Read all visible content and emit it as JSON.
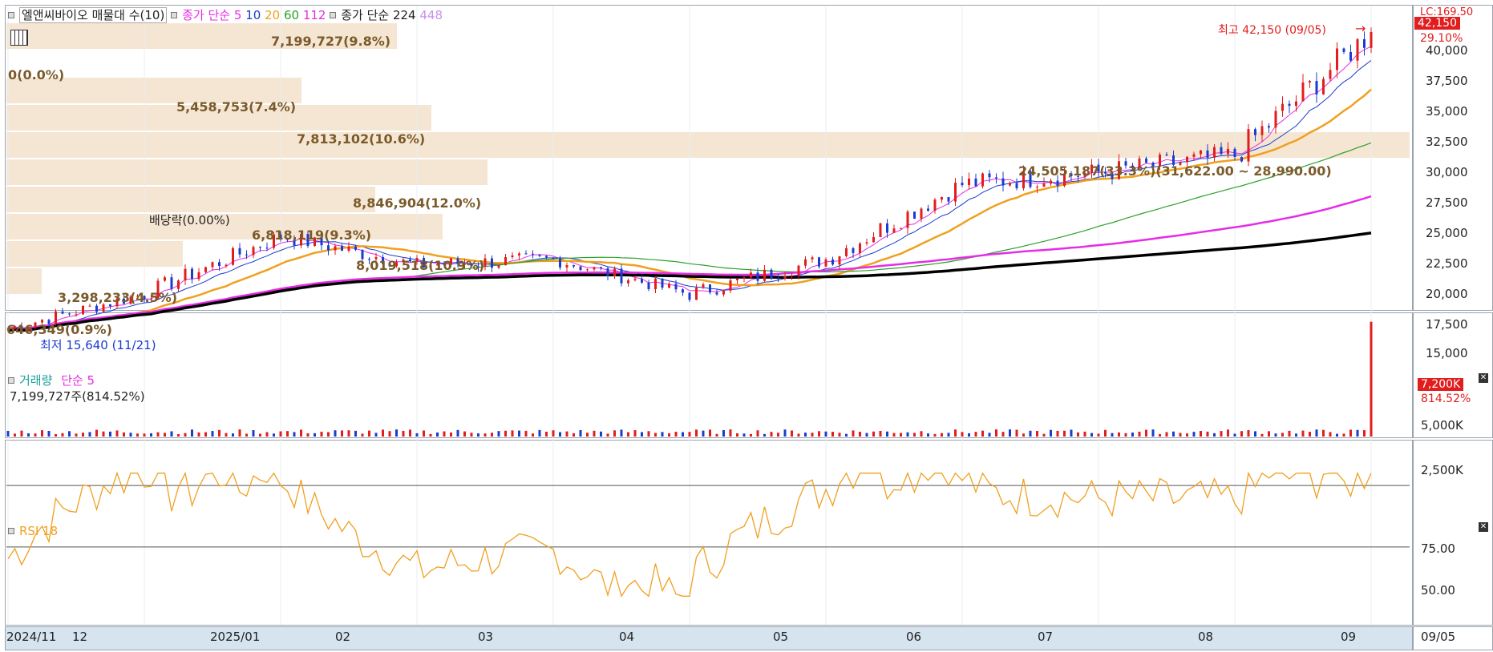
{
  "header": {
    "title": "엘앤씨바이오 매물대 수(10)",
    "ma_label": "종가 단순",
    "ma_periods": [
      "5",
      "10",
      "20",
      "60",
      "112"
    ],
    "ma2_label": "종가 단순 224",
    "ma2_extra": "448",
    "ma_colors": [
      "#e52de5",
      "#1a3ccf",
      "#f0a020",
      "#2aa02a",
      "#e52de5"
    ]
  },
  "price_panel": {
    "high_label": "최고 42,150 (09/05)",
    "low_label": "최저 15,640 (11/21)",
    "dividend_label": "배당락(0.00%)",
    "current_price": "42,150",
    "change_pct": "29.10%",
    "top_right_code": "LC:169.50",
    "y_ticks": [
      "40,000",
      "37,500",
      "35,000",
      "32,500",
      "30,000",
      "27,500",
      "25,000",
      "22,500",
      "20,000",
      "17,500",
      "15,000"
    ]
  },
  "volume_profile": [
    {
      "label": "7,199,727(9.8%)"
    },
    {
      "label": "0(0.0%)"
    },
    {
      "label": "5,458,753(7.4%)"
    },
    {
      "label": "7,813,102(10.6%)"
    },
    {
      "label": "24,505,187(33.3%)(31,622.00 ~ 28,990.00)"
    },
    {
      "label": "8,846,904(12.0%)"
    },
    {
      "label": "6,818,119(9.3%)"
    },
    {
      "label": "8,019,518(10.9%)"
    },
    {
      "label": "3,298,233(4.5%)"
    },
    {
      "label": "646,349(0.9%)"
    }
  ],
  "volume_panel": {
    "title": "거래량",
    "ma_label": "단순 5",
    "current": "7,199,727주(814.52%)",
    "tag": "7,200K",
    "tag_pct": "814.52%",
    "y_ticks": [
      "5,000K",
      "2,500K"
    ]
  },
  "rsi_panel": {
    "title": "RSI 18",
    "y_ticks": [
      "75.00",
      "50.00"
    ]
  },
  "x_axis": {
    "labels": [
      "2024/11",
      "12",
      "2025/01",
      "02",
      "03",
      "04",
      "05",
      "06",
      "07",
      "08",
      "09"
    ],
    "date_box": "09/05"
  },
  "colors": {
    "up": "#e21d1d",
    "down": "#1a3ccf",
    "ma224": "#000000",
    "ma448": "#c890f0",
    "rsi": "#f0a020",
    "vp": "#f5e6d3"
  },
  "chart_data": {
    "type": "candlestick",
    "x": [
      "2024/11",
      "12",
      "2025/01",
      "02",
      "03",
      "04",
      "05",
      "06",
      "07",
      "08",
      "09"
    ],
    "month_close": [
      16500,
      19500,
      24500,
      22000,
      22500,
      19500,
      22500,
      29000,
      30000,
      31500,
      42150
    ],
    "series": [
      {
        "name": "종가",
        "values": [
          16500,
          19500,
          24500,
          22000,
          22500,
          19500,
          22500,
          29000,
          30000,
          31500,
          42150
        ]
      }
    ],
    "ylim": [
      15000,
      42150
    ],
    "rsi_levels": [
      75,
      50
    ]
  }
}
